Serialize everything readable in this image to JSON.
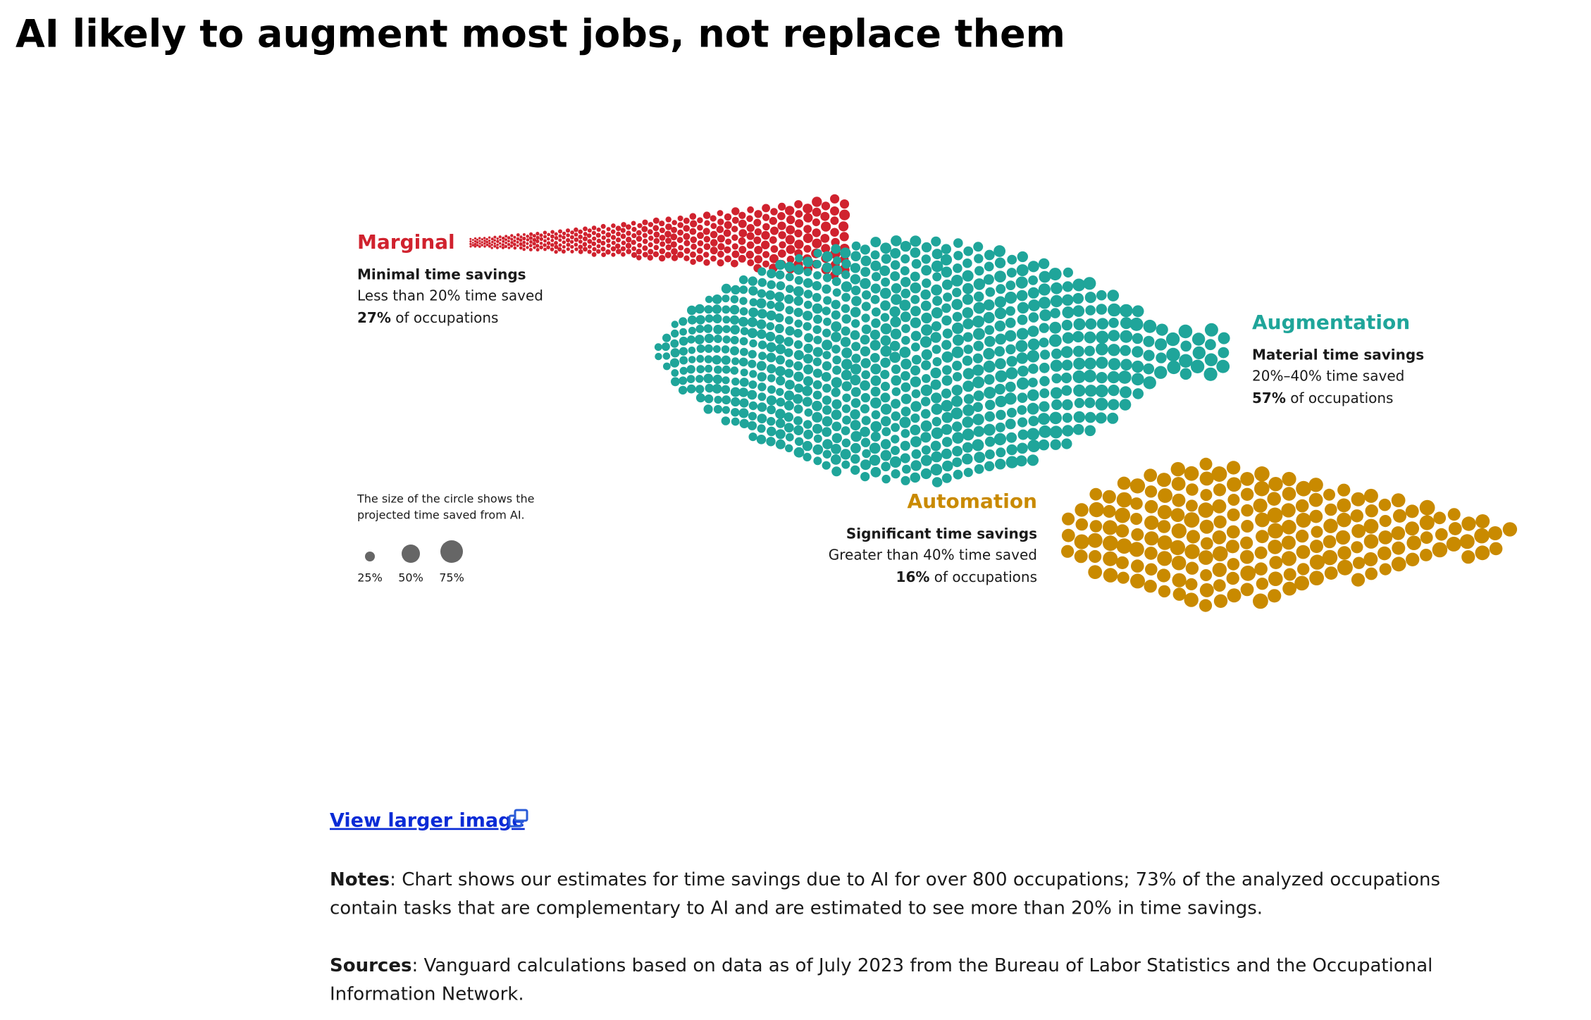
{
  "title": "AI likely to augment most jobs, not replace them",
  "groups": [
    {
      "name": "Marginal",
      "color": "#d0222e",
      "subtitle": "Minimal time savings",
      "range": "Less than 20% time saved",
      "share": "27%",
      "share_suffix": " of occupations"
    },
    {
      "name": "Augmentation",
      "color": "#1fa59a",
      "subtitle": "Material time savings",
      "range": "20%–40% time saved",
      "share": "57%",
      "share_suffix": " of occupations"
    },
    {
      "name": "Automation",
      "color": "#c98a00",
      "subtitle": "Significant time savings",
      "range": "Greater than 40% time saved",
      "share": "16%",
      "share_suffix": " of occupations"
    }
  ],
  "legend": {
    "lines": [
      "The size of the circle shows the",
      "projected time saved from AI."
    ],
    "sizes": [
      "25%",
      "50%",
      "75%"
    ]
  },
  "link": "View larger image",
  "notes": {
    "label": "Notes",
    "lines": [
      ": Chart shows our estimates for time savings due to AI for over 800 occupations; 73% of the analyzed occupations",
      "contain tasks that are complementary to AI and are estimated to see more than 20% in time savings."
    ]
  },
  "sources": {
    "label": "Sources",
    "lines": [
      ": Vanguard calculations based on data as of July 2023 from the Bureau of Labor Statistics and the Occupational",
      "Information Network."
    ]
  }
}
